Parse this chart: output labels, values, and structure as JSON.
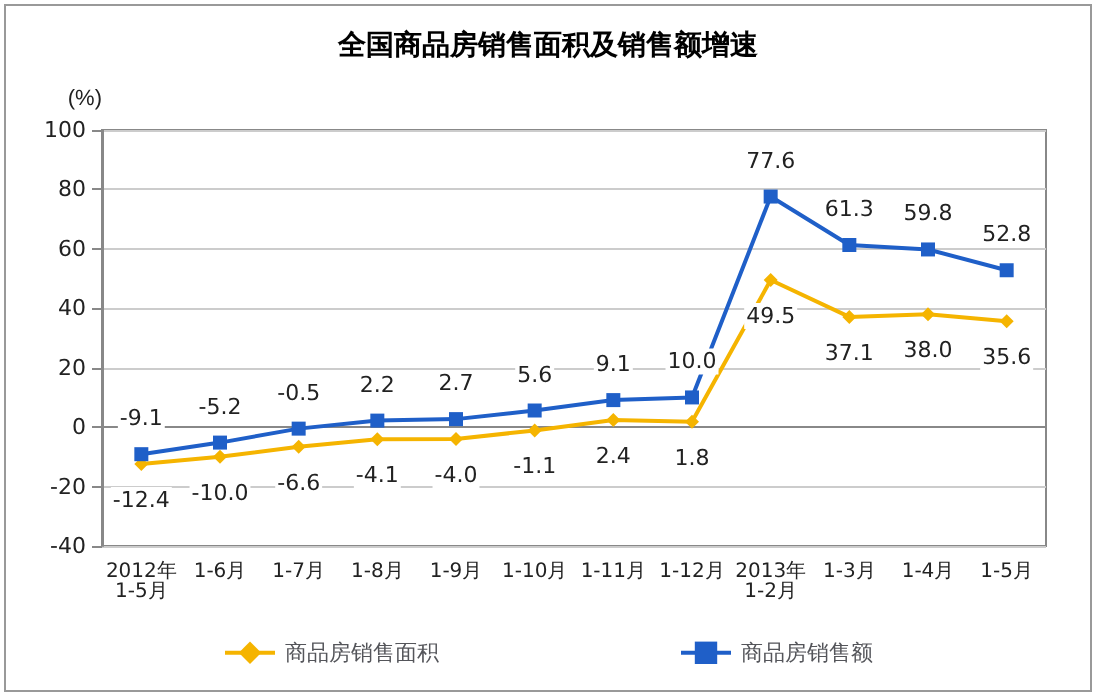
{
  "chart_data": {
    "type": "line",
    "title": "全国商品房销售面积及销售额增速",
    "ylabel": "(%)",
    "categories": [
      "2012年\n1-5月",
      "1-6月",
      "1-7月",
      "1-8月",
      "1-9月",
      "1-10月",
      "1-11月",
      "1-12月",
      "2013年\n1-2月",
      "1-3月",
      "1-4月",
      "1-5月"
    ],
    "series": [
      {
        "name": "商品房销售面积",
        "color": "#f5b400",
        "marker": "diamond",
        "values": [
          -12.4,
          -10.0,
          -6.6,
          -4.1,
          -4.0,
          -1.1,
          2.4,
          1.8,
          49.5,
          37.1,
          38.0,
          35.6
        ],
        "value_labels": [
          "-12.4",
          "-10.0",
          "-6.6",
          "-4.1",
          "-4.0",
          "-1.1",
          "2.4",
          "1.8",
          "49.5",
          "37.1",
          "38.0",
          "35.6"
        ]
      },
      {
        "name": "商品房销售额",
        "color": "#1f5fc8",
        "marker": "square",
        "values": [
          -9.1,
          -5.2,
          -0.5,
          2.2,
          2.7,
          5.6,
          9.1,
          10.0,
          77.6,
          61.3,
          59.8,
          52.8
        ],
        "value_labels": [
          "-9.1",
          "-5.2",
          "-0.5",
          "2.2",
          "2.7",
          "5.6",
          "9.1",
          "10.0",
          "77.6",
          "61.3",
          "59.8",
          "52.8"
        ]
      }
    ],
    "ylim": [
      -40,
      100
    ],
    "yticks": [
      -40,
      -20,
      0,
      20,
      40,
      60,
      80,
      100
    ],
    "grid": "y",
    "legend": "bottom",
    "line_style": "solid"
  }
}
